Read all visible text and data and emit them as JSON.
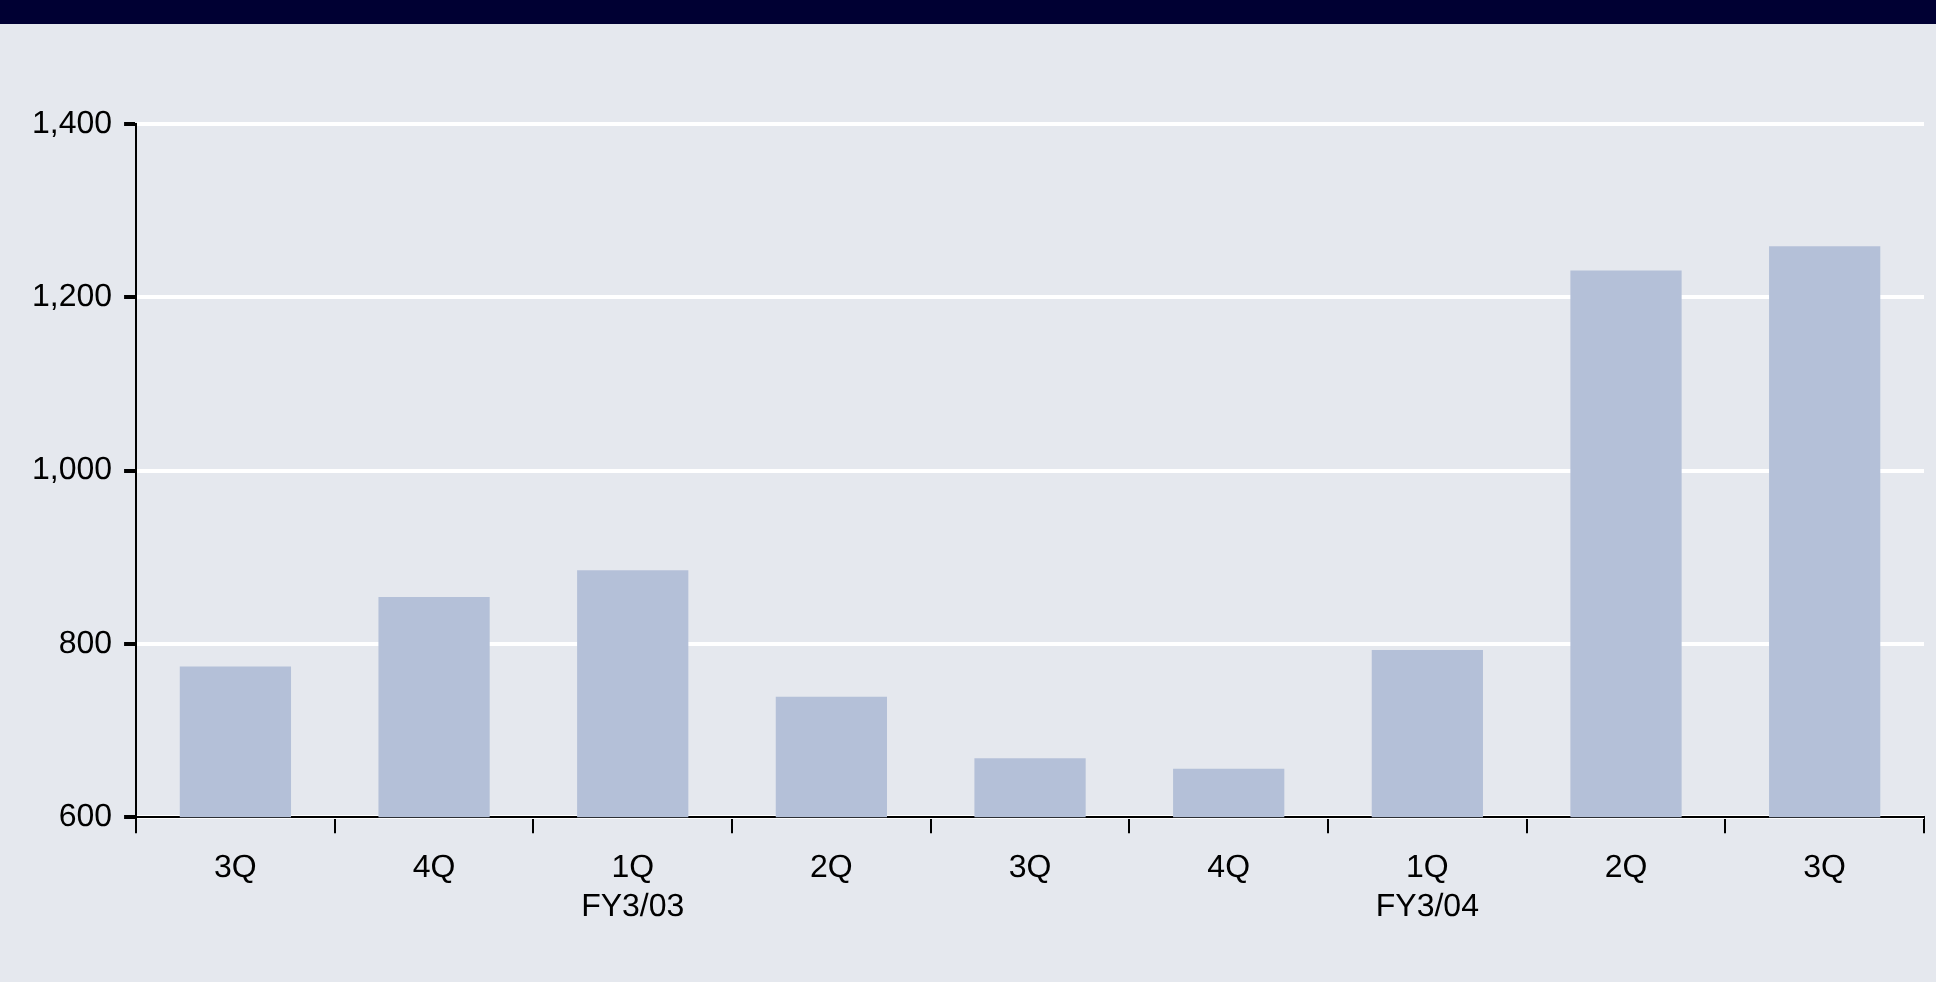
{
  "chart_data": {
    "type": "bar",
    "categories": [
      "3Q",
      "4Q",
      "1Q\nFY3/03",
      "2Q",
      "3Q",
      "4Q",
      "1Q\nFY3/04",
      "2Q",
      "3Q"
    ],
    "values": [
      774,
      854,
      885,
      739,
      668,
      656,
      793,
      1231,
      1259
    ],
    "color": "#b4c0d8",
    "ylim": [
      600,
      1400
    ],
    "yticks": [
      {
        "value": 600,
        "label": "600"
      },
      {
        "value": 800,
        "label": "800"
      },
      {
        "value": 1000,
        "label": "1,000"
      },
      {
        "value": 1200,
        "label": "1,200"
      },
      {
        "value": 1400,
        "label": "1,400"
      }
    ],
    "grid": "y"
  }
}
